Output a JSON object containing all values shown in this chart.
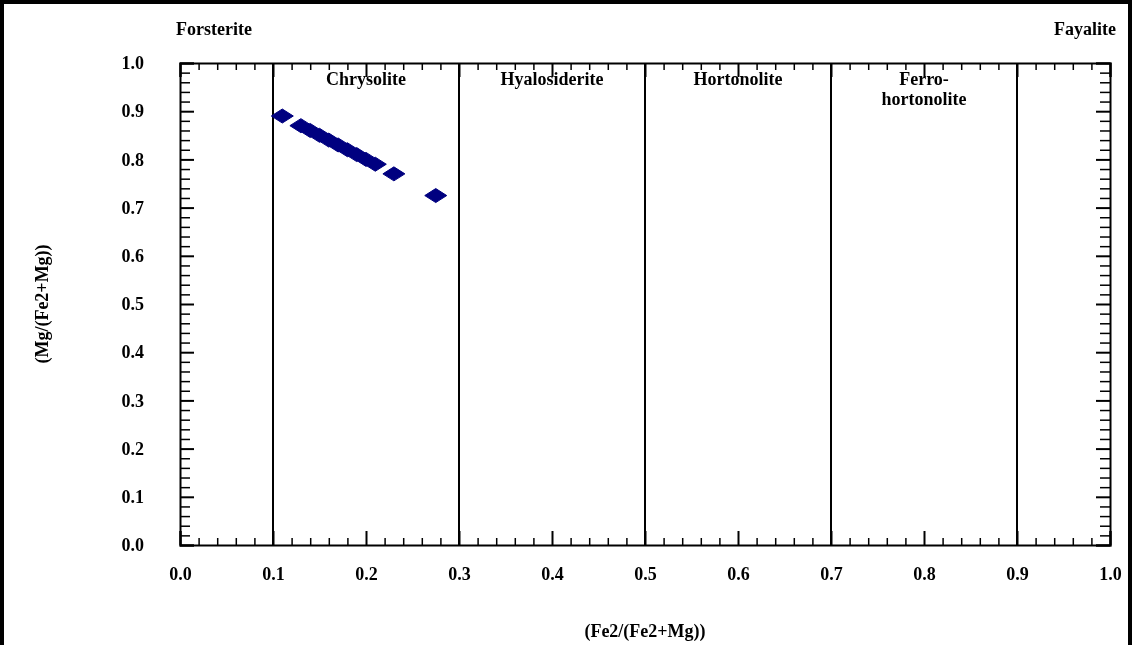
{
  "chart_data": {
    "type": "scatter",
    "xlabel": "(Fe2/(Fe2+Mg))",
    "ylabel": "(Mg/(Fe2+Mg))",
    "xlim": [
      0,
      1
    ],
    "ylim": [
      0,
      1
    ],
    "xticks": [
      {
        "value": 0,
        "label": "0.0"
      },
      0.1,
      0.2,
      0.3,
      0.4,
      0.5,
      0.6,
      0.7,
      0.8,
      0.9,
      {
        "value": 1,
        "label": "1.0"
      }
    ],
    "yticks": [
      {
        "value": 0,
        "label": "0.0"
      },
      0.1,
      0.2,
      0.3,
      0.4,
      0.5,
      0.6,
      0.7,
      0.8,
      0.9,
      {
        "value": 1,
        "label": "1.0"
      }
    ],
    "marker": "diamond",
    "series": [
      {
        "color": "#000080",
        "x": [
          0.11,
          0.13,
          0.14,
          0.15,
          0.16,
          0.17,
          0.18,
          0.19,
          0.2,
          0.21,
          0.23,
          0.275
        ],
        "values": [
          0.89,
          0.87,
          0.86,
          0.85,
          0.84,
          0.83,
          0.82,
          0.81,
          0.8,
          0.79,
          0.77,
          0.725
        ]
      }
    ],
    "ref_lines": [
      {
        "axis": "x",
        "value": 0.1
      },
      {
        "axis": "x",
        "value": 0.3
      },
      {
        "axis": "x",
        "value": 0.5
      },
      {
        "axis": "x",
        "value": 0.7
      },
      {
        "axis": "x",
        "value": 0.9
      }
    ],
    "grid": false,
    "annotations": [
      "Forsterite",
      "Chrysolite",
      "Hyalosiderite",
      "Hortonolite",
      "Ferro-\nhortonolite",
      "Fayalite"
    ]
  }
}
